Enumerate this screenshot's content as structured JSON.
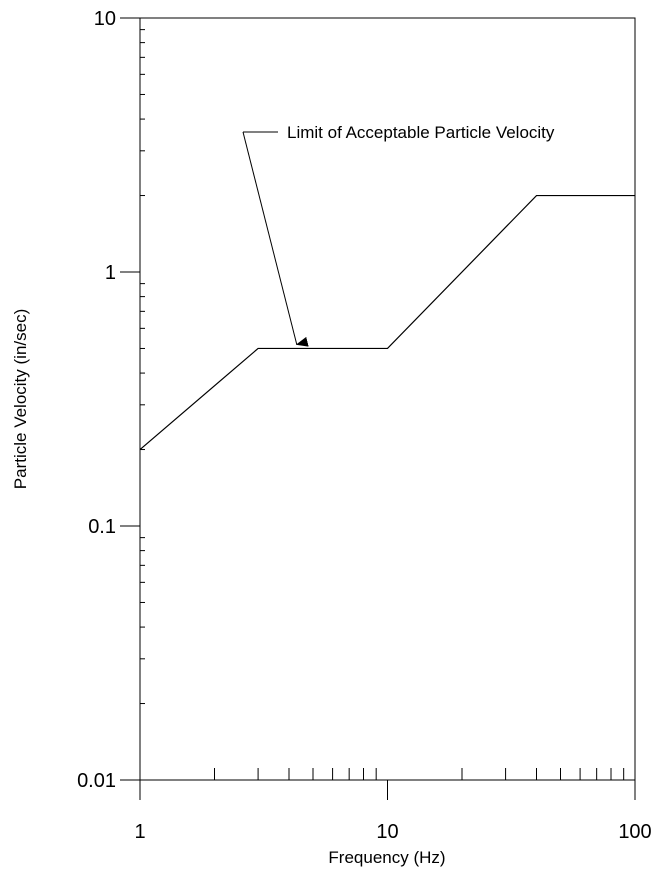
{
  "chart_data": {
    "type": "line",
    "title": "",
    "xlabel": "Frequency (Hz)",
    "ylabel": "Particle Velocity (in/sec)",
    "x_scale": "log",
    "y_scale": "log",
    "xlim": [
      1,
      100
    ],
    "ylim": [
      0.01,
      10
    ],
    "x_ticks": [
      1,
      10,
      100
    ],
    "x_tick_labels": [
      "1",
      "10",
      "100"
    ],
    "y_ticks": [
      0.01,
      0.1,
      1,
      10
    ],
    "y_tick_labels": [
      "0.01",
      "0.1",
      "1",
      "10"
    ],
    "grid": false,
    "series": [
      {
        "x": [
          1,
          3,
          10,
          40,
          100
        ],
        "y": [
          0.2,
          0.5,
          0.5,
          2,
          2
        ]
      }
    ],
    "annotations": [
      {
        "text": "Limit of Acceptable Particle Velocity",
        "target_x": 4.3,
        "target_y": 0.5
      }
    ],
    "colors": {
      "line": "#000000",
      "axis": "#000000"
    }
  }
}
